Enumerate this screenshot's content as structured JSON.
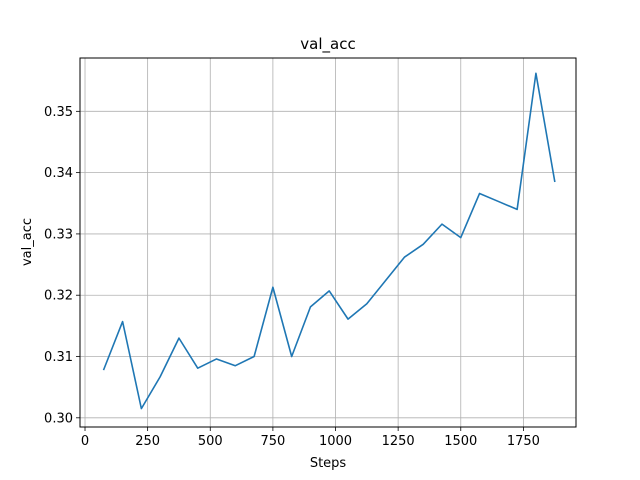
{
  "chart_data": {
    "type": "line",
    "title": "val_acc",
    "xlabel": "Steps",
    "ylabel": "val_acc",
    "grid": true,
    "xlim": [
      -20,
      1960
    ],
    "ylim": [
      0.2985,
      0.3587
    ],
    "xticks": [
      0,
      250,
      500,
      750,
      1000,
      1250,
      1500,
      1750
    ],
    "yticks": [
      0.3,
      0.31,
      0.32,
      0.33,
      0.34,
      0.35
    ],
    "ytick_labels": [
      "0.30",
      "0.31",
      "0.32",
      "0.33",
      "0.34",
      "0.35"
    ],
    "series_color": "#1f77b4",
    "series": [
      {
        "x": [
          75,
          150,
          225,
          300,
          375,
          450,
          525,
          600,
          675,
          750,
          825,
          900,
          975,
          1050,
          1125,
          1200,
          1275,
          1350,
          1425,
          1500,
          1575,
          1650,
          1725,
          1800,
          1875
        ],
        "y": [
          0.3079,
          0.3157,
          0.3015,
          0.3067,
          0.313,
          0.3081,
          0.3096,
          0.3085,
          0.31,
          0.3213,
          0.31,
          0.3181,
          0.3207,
          0.3161,
          0.3186,
          0.3224,
          0.3262,
          0.3283,
          0.3316,
          0.3294,
          0.3366,
          0.3353,
          0.334,
          0.3562,
          0.3386
        ]
      }
    ]
  }
}
